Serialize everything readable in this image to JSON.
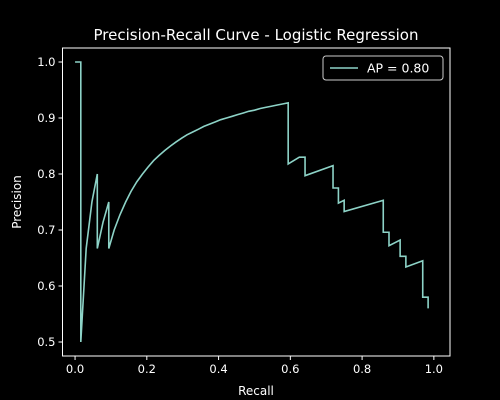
{
  "chart_data": {
    "type": "line",
    "title": "Precision-Recall Curve - Logistic Regression",
    "xlabel": "Recall",
    "ylabel": "Precision",
    "xlim": [
      -0.035,
      1.045
    ],
    "ylim": [
      0.475,
      1.025
    ],
    "xticks": [
      0.0,
      0.2,
      0.4,
      0.6,
      0.8,
      1.0
    ],
    "yticks": [
      0.5,
      0.6,
      0.7,
      0.8,
      0.9,
      1.0
    ],
    "xtick_labels": [
      "0.0",
      "0.2",
      "0.4",
      "0.6",
      "0.8",
      "1.0"
    ],
    "ytick_labels": [
      "0.5",
      "0.6",
      "0.7",
      "0.8",
      "0.9",
      "1.0"
    ],
    "grid": false,
    "legend_position": "upper right",
    "series": [
      {
        "name": "AP = 0.80",
        "color": "#8dd3c7",
        "x": [
          0.0,
          0.016,
          0.016,
          0.016,
          0.031,
          0.047,
          0.062,
          0.062,
          0.078,
          0.094,
          0.094,
          0.109,
          0.125,
          0.141,
          0.156,
          0.172,
          0.188,
          0.203,
          0.219,
          0.234,
          0.25,
          0.266,
          0.281,
          0.297,
          0.312,
          0.328,
          0.344,
          0.359,
          0.375,
          0.391,
          0.406,
          0.422,
          0.438,
          0.453,
          0.469,
          0.484,
          0.5,
          0.516,
          0.531,
          0.547,
          0.562,
          0.578,
          0.594,
          0.594,
          0.625,
          0.641,
          0.641,
          0.719,
          0.719,
          0.734,
          0.734,
          0.75,
          0.75,
          0.859,
          0.859,
          0.875,
          0.875,
          0.906,
          0.906,
          0.922,
          0.922,
          0.969,
          0.969,
          0.984,
          0.984
        ],
        "y": [
          1.0,
          1.0,
          0.5,
          0.5,
          0.667,
          0.75,
          0.8,
          0.667,
          0.714,
          0.75,
          0.667,
          0.7,
          0.727,
          0.75,
          0.769,
          0.786,
          0.8,
          0.812,
          0.824,
          0.833,
          0.842,
          0.85,
          0.857,
          0.864,
          0.87,
          0.875,
          0.88,
          0.885,
          0.889,
          0.893,
          0.897,
          0.9,
          0.903,
          0.906,
          0.909,
          0.912,
          0.914,
          0.917,
          0.919,
          0.921,
          0.923,
          0.925,
          0.927,
          0.818,
          0.83,
          0.83,
          0.797,
          0.815,
          0.775,
          0.775,
          0.748,
          0.753,
          0.733,
          0.753,
          0.696,
          0.696,
          0.672,
          0.682,
          0.653,
          0.653,
          0.634,
          0.645,
          0.58,
          0.58,
          0.56
        ]
      }
    ]
  }
}
